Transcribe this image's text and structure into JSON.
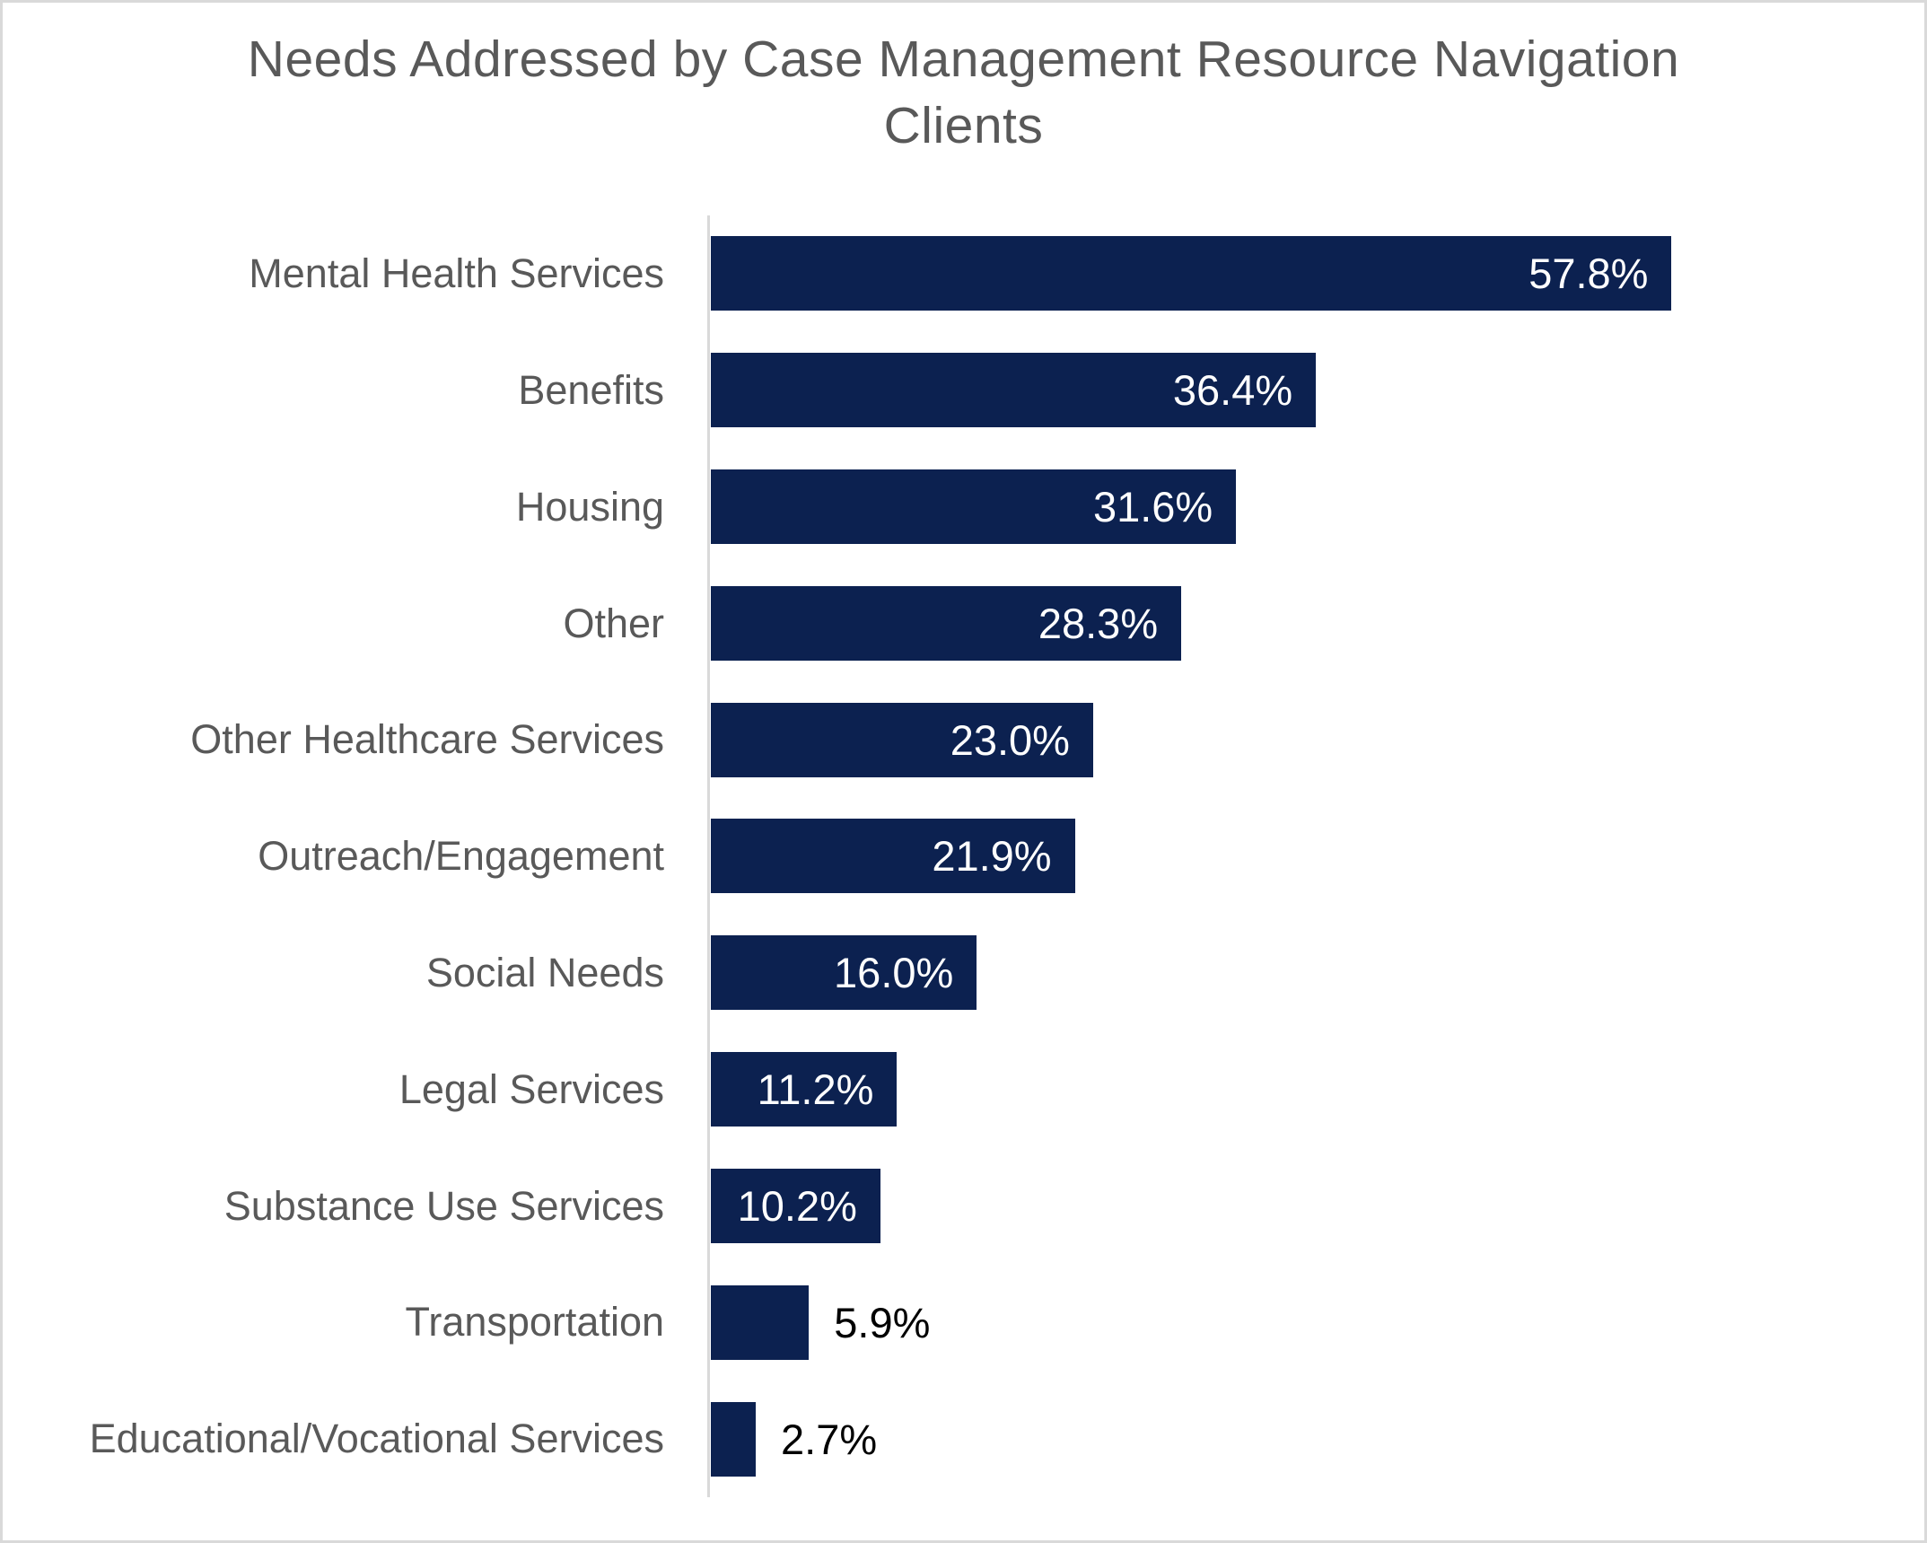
{
  "header": {
    "title_line1": "Needs Addressed by Case Management Resource Navigation",
    "title_line2": "Clients"
  },
  "colors": {
    "bar": "#0c2150",
    "title_text": "#595959",
    "category_label_text": "#595959",
    "value_label_inside": "#ffffff",
    "value_label_outside": "#000000",
    "axis_line": "#d9d9d9",
    "page_border": "#d9d9d9",
    "background": "#ffffff"
  },
  "chart_data": {
    "type": "bar",
    "orientation": "horizontal",
    "title": "Needs Addressed by Case Management Resource Navigation Clients",
    "categories": [
      "Mental Health Services",
      "Benefits",
      "Housing",
      "Other",
      "Other Healthcare Services",
      "Outreach/Engagement",
      "Social Needs",
      "Legal Services",
      "Substance Use Services",
      "Transportation",
      "Educational/Vocational Services"
    ],
    "values": [
      57.8,
      36.4,
      31.6,
      28.3,
      23.0,
      21.9,
      16.0,
      11.2,
      10.2,
      5.9,
      2.7
    ],
    "data_labels": [
      "57.8%",
      "36.4%",
      "31.6%",
      "28.3%",
      "23.0%",
      "21.9%",
      "16.0%",
      "11.2%",
      "10.2%",
      "5.9%",
      "2.7%"
    ],
    "data_label_placement": [
      "inside",
      "inside",
      "inside",
      "inside",
      "inside",
      "inside",
      "inside",
      "inside",
      "inside",
      "outside",
      "outside"
    ],
    "xlabel": "",
    "ylabel": "",
    "xlim": [
      0,
      73
    ],
    "grid": false,
    "legend": false,
    "sort_order": "descending",
    "units": "percent"
  }
}
